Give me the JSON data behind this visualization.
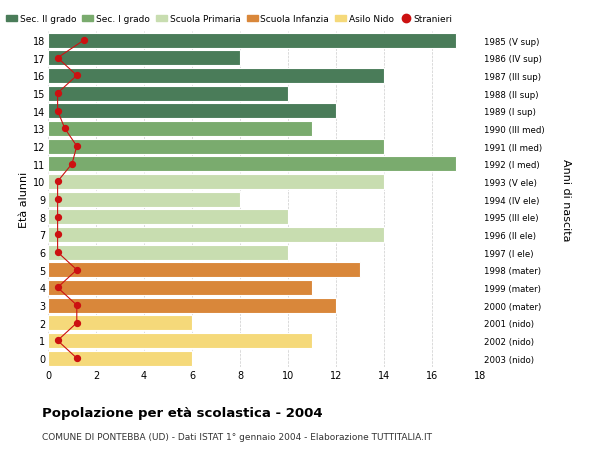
{
  "ages": [
    18,
    17,
    16,
    15,
    14,
    13,
    12,
    11,
    10,
    9,
    8,
    7,
    6,
    5,
    4,
    3,
    2,
    1,
    0
  ],
  "right_labels": [
    "1985 (V sup)",
    "1986 (IV sup)",
    "1987 (III sup)",
    "1988 (II sup)",
    "1989 (I sup)",
    "1990 (III med)",
    "1991 (II med)",
    "1992 (I med)",
    "1993 (V ele)",
    "1994 (IV ele)",
    "1995 (III ele)",
    "1996 (II ele)",
    "1997 (I ele)",
    "1998 (mater)",
    "1999 (mater)",
    "2000 (mater)",
    "2001 (nido)",
    "2002 (nido)",
    "2003 (nido)"
  ],
  "bar_values": [
    17,
    8,
    14,
    10,
    12,
    11,
    14,
    17,
    14,
    8,
    10,
    14,
    10,
    13,
    11,
    12,
    6,
    11,
    6
  ],
  "bar_colors": [
    "#4a7c59",
    "#4a7c59",
    "#4a7c59",
    "#4a7c59",
    "#4a7c59",
    "#7aab6e",
    "#7aab6e",
    "#7aab6e",
    "#c8ddb0",
    "#c8ddb0",
    "#c8ddb0",
    "#c8ddb0",
    "#c8ddb0",
    "#d9873a",
    "#d9873a",
    "#d9873a",
    "#f5d97a",
    "#f5d97a",
    "#f5d97a"
  ],
  "stranieri_x": [
    1.5,
    0.4,
    1.2,
    0.4,
    0.4,
    0.7,
    1.2,
    1.0,
    0.4,
    0.4,
    0.4,
    0.4,
    0.4,
    1.2,
    0.4,
    1.2,
    1.2,
    0.4,
    1.2
  ],
  "legend_labels": [
    "Sec. II grado",
    "Sec. I grado",
    "Scuola Primaria",
    "Scuola Infanzia",
    "Asilo Nido",
    "Stranieri"
  ],
  "legend_colors": [
    "#4a7c59",
    "#7aab6e",
    "#c8ddb0",
    "#d9873a",
    "#f5d97a",
    "#cc1111"
  ],
  "title": "Popolazione per età scolastica - 2004",
  "subtitle": "COMUNE DI PONTEBBA (UD) - Dati ISTAT 1° gennaio 2004 - Elaborazione TUTTITALIA.IT",
  "ylabel_left": "Età alunni",
  "ylabel_right": "Anni di nascita",
  "xlim": [
    0,
    18
  ],
  "bg_color": "#ffffff",
  "plot_bg_color": "#ffffff",
  "grid_color": "#cccccc",
  "bar_height": 0.85
}
